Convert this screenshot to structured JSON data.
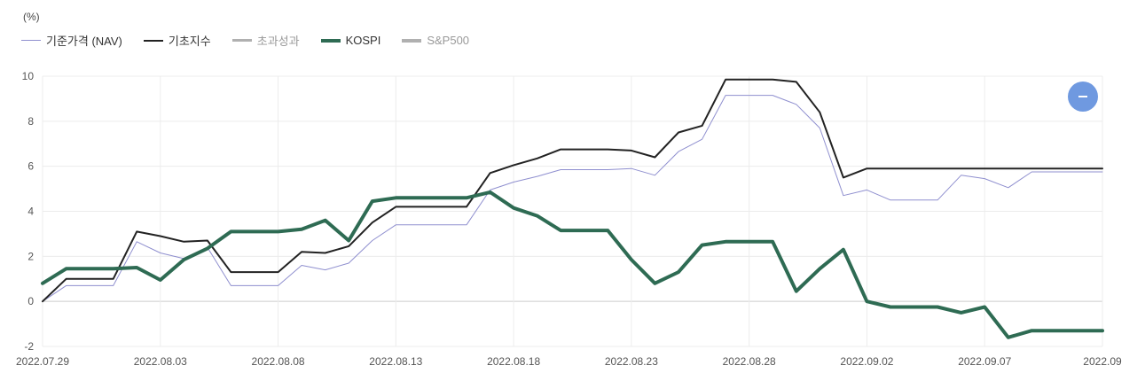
{
  "unit_label": "(%)",
  "legend": [
    {
      "label": "기준가격 (NAV)",
      "color": "#8f8fcf",
      "weight": 1,
      "muted": false
    },
    {
      "label": "기초지수",
      "color": "#222222",
      "weight": 2,
      "muted": false
    },
    {
      "label": "초과성과",
      "color": "#b0b0b0",
      "weight": 3,
      "muted": true
    },
    {
      "label": "KOSPI",
      "color": "#2e6b53",
      "weight": 4,
      "muted": false
    },
    {
      "label": "S&P500",
      "color": "#b0b0b0",
      "weight": 4,
      "muted": true
    }
  ],
  "fab_icon": "minus-icon",
  "chart_data": {
    "type": "line",
    "x_tick_labels": [
      "2022.07.29",
      "2022.08.03",
      "2022.08.08",
      "2022.08.13",
      "2022.08.18",
      "2022.08.23",
      "2022.08.28",
      "2022.09.02",
      "2022.09.07",
      "2022.09"
    ],
    "x_ticks": [
      "2022-07-29",
      "2022-08-03",
      "2022-08-08",
      "2022-08-13",
      "2022-08-18",
      "2022-08-23",
      "2022-08-28",
      "2022-09-02",
      "2022-09-07",
      "2022-09-12"
    ],
    "xlim": [
      "2022-07-29",
      "2022-09-12"
    ],
    "ylim": [
      -2,
      10
    ],
    "y_ticks": [
      -2,
      0,
      2,
      4,
      6,
      8,
      10
    ],
    "grid": true,
    "legend_position": "top-left",
    "series": [
      {
        "name": "기준가격 (NAV)",
        "color": "#8f8fcf",
        "width": 1,
        "x": [
          "2022-07-29",
          "2022-07-30",
          "2022-08-01",
          "2022-08-02",
          "2022-08-03",
          "2022-08-04",
          "2022-08-05",
          "2022-08-06",
          "2022-08-07",
          "2022-08-08",
          "2022-08-09",
          "2022-08-10",
          "2022-08-11",
          "2022-08-12",
          "2022-08-13",
          "2022-08-14",
          "2022-08-16",
          "2022-08-17",
          "2022-08-18",
          "2022-08-19",
          "2022-08-20",
          "2022-08-22",
          "2022-08-23",
          "2022-08-24",
          "2022-08-25",
          "2022-08-26",
          "2022-08-27",
          "2022-08-29",
          "2022-08-30",
          "2022-08-31",
          "2022-09-01",
          "2022-09-02",
          "2022-09-03",
          "2022-09-05",
          "2022-09-06",
          "2022-09-07",
          "2022-09-08",
          "2022-09-09",
          "2022-09-12"
        ],
        "y": [
          0,
          0.7,
          0.7,
          2.65,
          2.15,
          1.9,
          2.4,
          0.7,
          0.7,
          0.7,
          1.6,
          1.4,
          1.7,
          2.7,
          3.4,
          3.4,
          3.4,
          4.95,
          5.3,
          5.55,
          5.85,
          5.85,
          5.9,
          5.6,
          6.65,
          7.2,
          9.15,
          9.15,
          8.75,
          7.7,
          4.7,
          4.95,
          4.5,
          4.5,
          5.6,
          5.45,
          5.05,
          5.75,
          5.75
        ]
      },
      {
        "name": "기초지수",
        "color": "#222222",
        "width": 2,
        "x": [
          "2022-07-29",
          "2022-07-30",
          "2022-08-01",
          "2022-08-02",
          "2022-08-03",
          "2022-08-04",
          "2022-08-05",
          "2022-08-06",
          "2022-08-07",
          "2022-08-08",
          "2022-08-09",
          "2022-08-10",
          "2022-08-11",
          "2022-08-12",
          "2022-08-13",
          "2022-08-14",
          "2022-08-16",
          "2022-08-17",
          "2022-08-18",
          "2022-08-19",
          "2022-08-20",
          "2022-08-22",
          "2022-08-23",
          "2022-08-24",
          "2022-08-25",
          "2022-08-26",
          "2022-08-27",
          "2022-08-29",
          "2022-08-30",
          "2022-08-31",
          "2022-09-01",
          "2022-09-02",
          "2022-09-03",
          "2022-09-05",
          "2022-09-06",
          "2022-09-07",
          "2022-09-08",
          "2022-09-09",
          "2022-09-12"
        ],
        "y": [
          0,
          1.0,
          1.0,
          3.1,
          2.9,
          2.65,
          2.7,
          1.3,
          1.3,
          1.3,
          2.2,
          2.15,
          2.45,
          3.5,
          4.2,
          4.2,
          4.2,
          5.7,
          6.05,
          6.35,
          6.75,
          6.75,
          6.7,
          6.4,
          7.5,
          7.8,
          9.85,
          9.85,
          9.75,
          8.4,
          5.5,
          5.9,
          5.9,
          5.9,
          5.9,
          5.9,
          5.9,
          5.9,
          5.9
        ]
      },
      {
        "name": "KOSPI",
        "color": "#2e6b53",
        "width": 4,
        "x": [
          "2022-07-29",
          "2022-07-30",
          "2022-08-01",
          "2022-08-02",
          "2022-08-03",
          "2022-08-04",
          "2022-08-05",
          "2022-08-06",
          "2022-08-07",
          "2022-08-08",
          "2022-08-09",
          "2022-08-10",
          "2022-08-11",
          "2022-08-12",
          "2022-08-13",
          "2022-08-14",
          "2022-08-16",
          "2022-08-17",
          "2022-08-18",
          "2022-08-19",
          "2022-08-20",
          "2022-08-22",
          "2022-08-23",
          "2022-08-24",
          "2022-08-25",
          "2022-08-26",
          "2022-08-27",
          "2022-08-29",
          "2022-08-30",
          "2022-08-31",
          "2022-09-01",
          "2022-09-02",
          "2022-09-03",
          "2022-09-05",
          "2022-09-06",
          "2022-09-07",
          "2022-09-08",
          "2022-09-09",
          "2022-09-12"
        ],
        "y": [
          0.8,
          1.45,
          1.45,
          1.5,
          0.95,
          1.85,
          2.35,
          3.1,
          3.1,
          3.1,
          3.2,
          3.6,
          2.7,
          4.45,
          4.6,
          4.6,
          4.6,
          4.85,
          4.15,
          3.8,
          3.15,
          3.15,
          1.85,
          0.8,
          1.3,
          2.5,
          2.65,
          2.65,
          0.45,
          1.45,
          2.3,
          0,
          -0.25,
          -0.25,
          -0.5,
          -0.25,
          -1.6,
          -1.3,
          -1.3
        ]
      }
    ]
  }
}
